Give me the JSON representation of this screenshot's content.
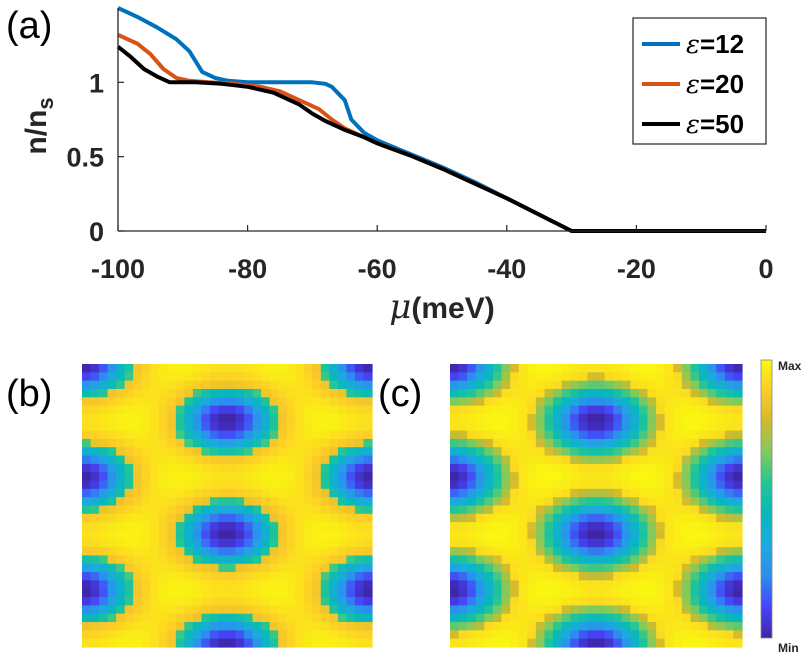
{
  "panels": {
    "a": "(a)",
    "b": "(b)",
    "c": "(c)"
  },
  "chart_data": [
    {
      "type": "line",
      "panel": "(a)",
      "xlabel_symbol": "μ",
      "xlabel_unit": "(meV)",
      "ylabel_main": "n/n",
      "ylabel_sub": "s",
      "xlim": [
        -100,
        0
      ],
      "ylim": [
        0,
        1.5
      ],
      "xticks": [
        -100,
        -80,
        -60,
        -40,
        -20,
        0
      ],
      "yticks": [
        0,
        0.5,
        1
      ],
      "ytick_labels": [
        "0",
        "0.5",
        "1"
      ],
      "grid": false,
      "legend_position": "top-right",
      "series": [
        {
          "name": "ε=12",
          "legend_symbol": "ε",
          "legend_value": "=12",
          "color": "#0072BD",
          "points": [
            [
              -100,
              1.5
            ],
            [
              -97,
              1.44
            ],
            [
              -94,
              1.37
            ],
            [
              -91,
              1.29
            ],
            [
              -89,
              1.21
            ],
            [
              -87,
              1.07
            ],
            [
              -85,
              1.03
            ],
            [
              -83,
              1.01
            ],
            [
              -80,
              1.0
            ],
            [
              -75,
              1.0
            ],
            [
              -70,
              1.0
            ],
            [
              -68,
              0.99
            ],
            [
              -67,
              0.97
            ],
            [
              -65,
              0.88
            ],
            [
              -64,
              0.75
            ],
            [
              -62,
              0.66
            ],
            [
              -60,
              0.61
            ],
            [
              -55,
              0.52
            ],
            [
              -50,
              0.43
            ],
            [
              -45,
              0.33
            ],
            [
              -40,
              0.22
            ],
            [
              -35,
              0.11
            ],
            [
              -30,
              0.0
            ],
            [
              0,
              0.0
            ]
          ]
        },
        {
          "name": "ε=20",
          "legend_symbol": "ε",
          "legend_value": "=20",
          "color": "#D95319",
          "points": [
            [
              -100,
              1.32
            ],
            [
              -97,
              1.26
            ],
            [
              -95,
              1.19
            ],
            [
              -93,
              1.09
            ],
            [
              -91,
              1.03
            ],
            [
              -89,
              1.01
            ],
            [
              -86,
              1.0
            ],
            [
              -82,
              0.99
            ],
            [
              -78,
              0.97
            ],
            [
              -75,
              0.94
            ],
            [
              -72,
              0.88
            ],
            [
              -69,
              0.82
            ],
            [
              -67,
              0.75
            ],
            [
              -65,
              0.69
            ],
            [
              -62,
              0.63
            ],
            [
              -60,
              0.59
            ],
            [
              -55,
              0.51
            ],
            [
              -50,
              0.42
            ],
            [
              -45,
              0.32
            ],
            [
              -40,
              0.22
            ],
            [
              -35,
              0.11
            ],
            [
              -30,
              0.0
            ],
            [
              0,
              0.0
            ]
          ]
        },
        {
          "name": "ε=50",
          "legend_symbol": "ε",
          "legend_value": "=50",
          "color": "#000000",
          "points": [
            [
              -100,
              1.24
            ],
            [
              -98,
              1.17
            ],
            [
              -96,
              1.09
            ],
            [
              -94,
              1.04
            ],
            [
              -92,
              1.0
            ],
            [
              -88,
              1.0
            ],
            [
              -84,
              0.99
            ],
            [
              -80,
              0.97
            ],
            [
              -76,
              0.93
            ],
            [
              -72,
              0.85
            ],
            [
              -70,
              0.79
            ],
            [
              -68,
              0.74
            ],
            [
              -65,
              0.68
            ],
            [
              -62,
              0.63
            ],
            [
              -60,
              0.59
            ],
            [
              -55,
              0.51
            ],
            [
              -50,
              0.42
            ],
            [
              -45,
              0.32
            ],
            [
              -40,
              0.22
            ],
            [
              -35,
              0.11
            ],
            [
              -30,
              0.0
            ],
            [
              0,
              0.0
            ]
          ]
        }
      ]
    },
    {
      "type": "heatmap",
      "panel": "(b)",
      "grid_cells": 34,
      "lattice_periods": [
        2,
        2.5
      ],
      "field": "moire-triangular",
      "color_range": [
        0,
        1
      ],
      "min_value_plateau": 0.6
    },
    {
      "type": "heatmap",
      "panel": "(c)",
      "grid_cells": 34,
      "lattice_periods": [
        2,
        2.5
      ],
      "field": "moire-triangular",
      "color_range": [
        0,
        1
      ],
      "min_value_plateau": 0.8
    }
  ],
  "colorbar": {
    "max_label": "Max",
    "min_label": "Min",
    "colormap": [
      "#3E26A8",
      "#4743F8",
      "#2D8CEE",
      "#1CAADF",
      "#06B8BC",
      "#22C596",
      "#7FCB5D",
      "#D0BA2D",
      "#FDCB29",
      "#F9FB0E"
    ]
  }
}
